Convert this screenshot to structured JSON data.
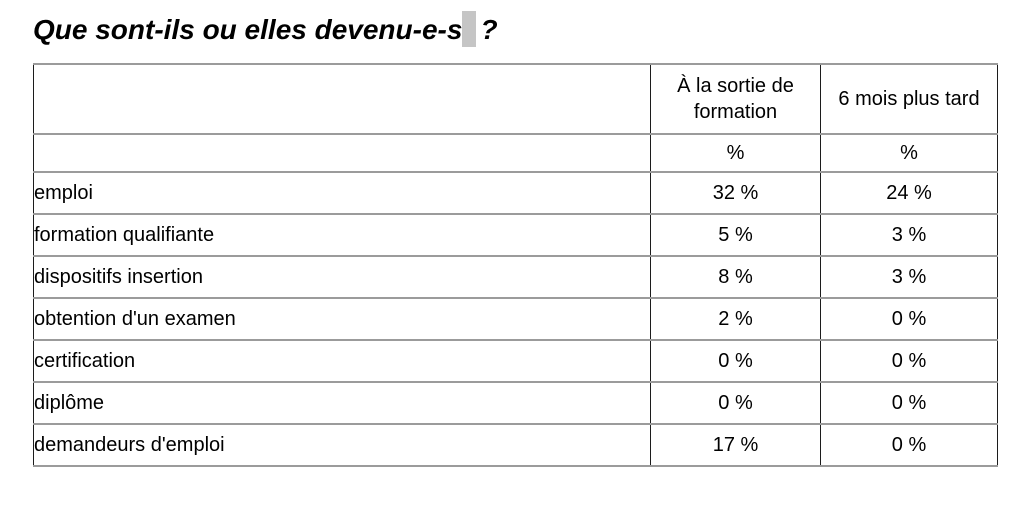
{
  "title": {
    "text": "Que sont-ils ou elles devenu-e-s",
    "selected_char": " ",
    "suffix": "?"
  },
  "table": {
    "header": {
      "col1": "",
      "col2": "À la sortie de formation",
      "col3": "6 mois plus tard"
    },
    "unit_row": {
      "col1": "",
      "col2": "%",
      "col3": "%"
    },
    "rows": [
      {
        "label": "emploi",
        "sortie": "32 %",
        "plus_tard": "24 %"
      },
      {
        "label": "formation qualifiante",
        "sortie": "5 %",
        "plus_tard": "3 %"
      },
      {
        "label": "dispositifs insertion",
        "sortie": "8 %",
        "plus_tard": "3 %"
      },
      {
        "label": "obtention d'un examen",
        "sortie": "2 %",
        "plus_tard": "0 %"
      },
      {
        "label": "certification",
        "sortie": "0 %",
        "plus_tard": "0 %"
      },
      {
        "label": "diplôme",
        "sortie": "0 %",
        "plus_tard": "0 %"
      },
      {
        "label": "demandeurs d'emploi",
        "sortie": "17 %",
        "plus_tard": "0 %"
      }
    ]
  },
  "colors": {
    "selection_highlight": "#c5c5c5",
    "border_vertical": "#1c1c1c",
    "border_horizontal": "#9b9b9b",
    "text": "#000000",
    "background": "#ffffff"
  }
}
